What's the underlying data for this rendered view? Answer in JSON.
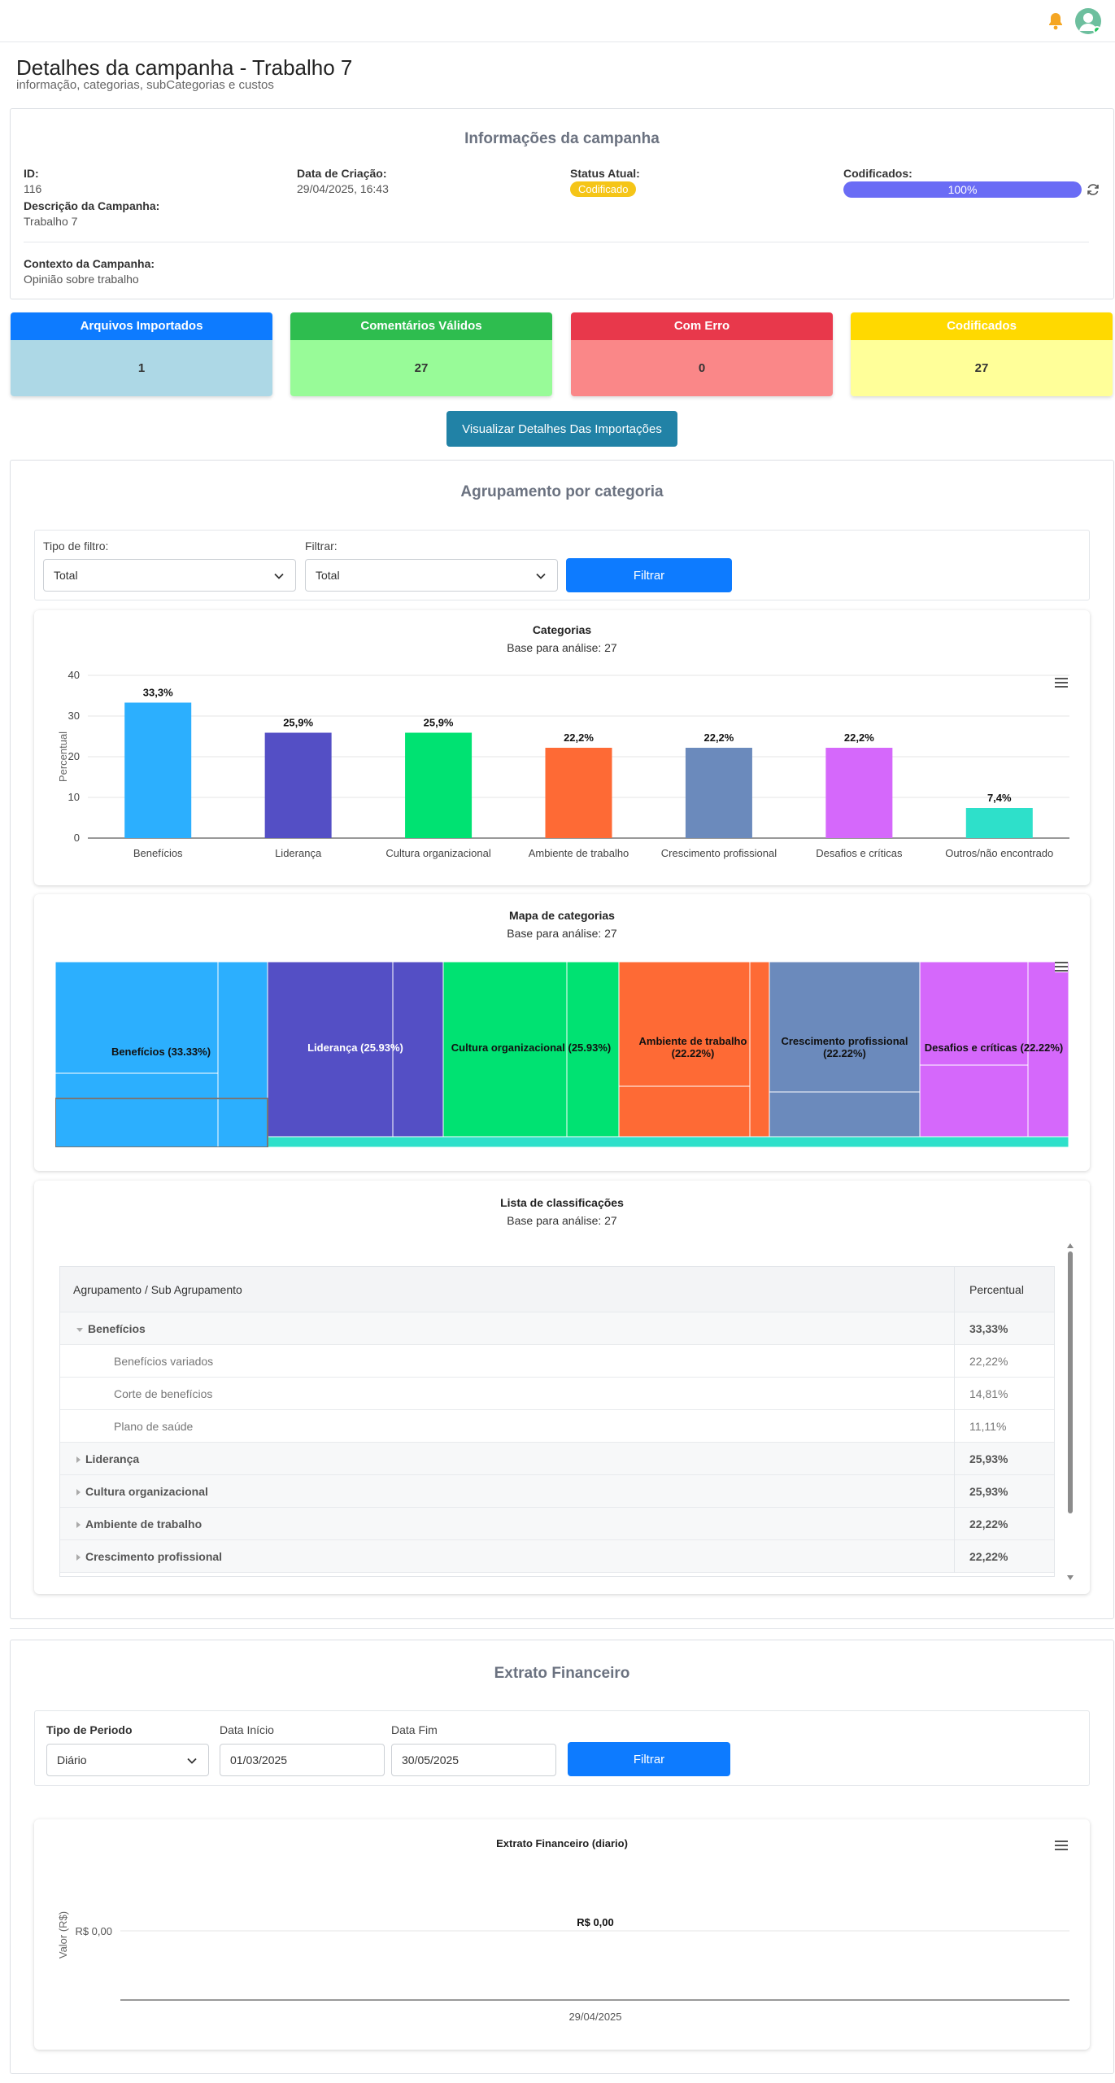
{
  "header": {
    "title": "Detalhes da campanha - Trabalho 7",
    "subtitle": "informação, categorias, subCategorias e custos"
  },
  "info": {
    "title": "Informações da campanha",
    "id_label": "ID:",
    "id_value": "116",
    "created_label": "Data de Criação:",
    "created_value": "29/04/2025, 16:43",
    "status_label": "Status Atual:",
    "status_value": "Codificado",
    "coded_label": "Codificados:",
    "coded_value": "100%",
    "coded_fraction": 1.0,
    "desc_label": "Descrição da Campanha:",
    "desc_value": "Trabalho 7",
    "context_label": "Contexto da Campanha:",
    "context_value": "Opinião sobre trabalho"
  },
  "stats": [
    {
      "label": "Arquivos Importados",
      "value": "1",
      "head": "#0d7bff",
      "body": "#add8e6"
    },
    {
      "label": "Comentários Válidos",
      "value": "27",
      "head": "#2ebd4f",
      "body": "#98fb98"
    },
    {
      "label": "Com Erro",
      "value": "0",
      "head": "#e8384b",
      "body": "#fa8788"
    },
    {
      "label": "Codificados",
      "value": "27",
      "head": "#ffd900",
      "body": "#ffff99"
    }
  ],
  "import_button": "Visualizar Detalhes Das Importações",
  "grouping": {
    "title": "Agrupamento por categoria",
    "filter_type_label": "Tipo de filtro:",
    "filter_type_value": "Total",
    "filter_label": "Filtrar:",
    "filter_value": "Total",
    "filter_button": "Filtrar"
  },
  "chart_data": {
    "type": "bar",
    "title": "Categorias",
    "subtitle": "Base para análise: 27",
    "ylabel": "Percentual",
    "xlabel": "",
    "ylim": [
      0,
      40
    ],
    "yticks": [
      "0",
      "10",
      "20",
      "30",
      "40"
    ],
    "grid": true,
    "categories": [
      "Benefícios",
      "Liderança",
      "Cultura organizacional",
      "Ambiente de trabalho",
      "Crescimento profissional",
      "Desafios e críticas",
      "Outros/não encontrado"
    ],
    "values": [
      33.3,
      25.9,
      25.9,
      22.2,
      22.2,
      22.2,
      7.4
    ],
    "data_labels": [
      "33,3%",
      "25,9%",
      "25,9%",
      "22,2%",
      "22,2%",
      "22,2%",
      "7,4%"
    ],
    "colors": [
      "#2caffe",
      "#544fc5",
      "#00e272",
      "#fe6a35",
      "#6b8abc",
      "#d568fb",
      "#2ee0ca"
    ]
  },
  "treemap": {
    "title": "Mapa de categorias",
    "subtitle": "Base para análise: 27",
    "labels": [
      "Benefícios (33.33%)",
      "Liderança (25.93%)",
      "Cultura organizacional (25.93%)",
      "Ambiente de trabalho (22.22%)",
      "Crescimento profissional (22.22%)",
      "Desafios e críticas (22.22%)"
    ]
  },
  "classifications": {
    "title": "Lista de classificações",
    "subtitle": "Base para análise: 27",
    "col1": "Agrupamento / Sub Agrupamento",
    "col2": "Percentual",
    "rows": [
      {
        "label": "Benefícios",
        "value": "33,33%"
      },
      {
        "label": "Benefícios variados",
        "value": "22,22%"
      },
      {
        "label": "Corte de benefícios",
        "value": "14,81%"
      },
      {
        "label": "Plano de saúde",
        "value": "11,11%"
      },
      {
        "label": "Liderança",
        "value": "25,93%"
      },
      {
        "label": "Cultura organizacional",
        "value": "25,93%"
      },
      {
        "label": "Ambiente de trabalho",
        "value": "22,22%"
      },
      {
        "label": "Crescimento profissional",
        "value": "22,22%"
      }
    ]
  },
  "finance": {
    "title": "Extrato Financeiro",
    "period_label": "Tipo de Periodo",
    "period_value": "Diário",
    "start_label": "Data Início",
    "start_value": "01/03/2025",
    "end_label": "Data Fim",
    "end_value": "30/05/2025",
    "filter_button": "Filtrar",
    "chart_title": "Extrato Financeiro (diario)",
    "ylabel": "Valor (R$)",
    "ytick": "R$ 0,00",
    "data_label": "R$ 0,00",
    "xtick": "29/04/2025"
  }
}
